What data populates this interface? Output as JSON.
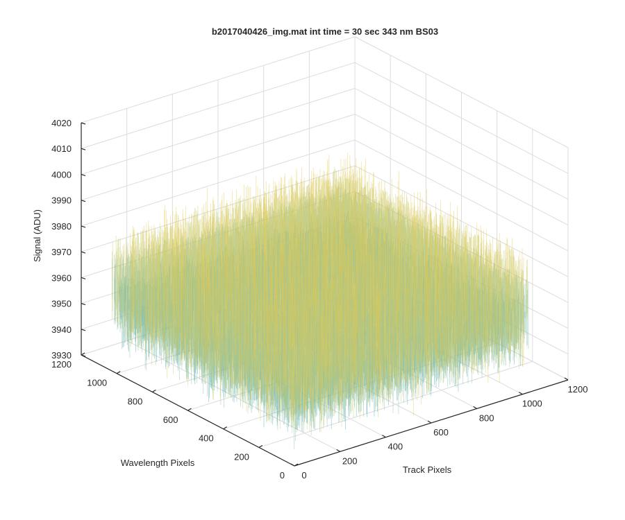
{
  "chart_data": {
    "type": "surface",
    "title": "b2017040426_img.mat int time = 30 sec  343 nm BS03",
    "xlabel": "Track Pixels",
    "ylabel": "Wavelength Pixels",
    "zlabel": "Signal (ADU)",
    "xlim": [
      0,
      1200
    ],
    "ylim": [
      0,
      1200
    ],
    "zlim": [
      3930,
      4020
    ],
    "x_ticks": [
      "0",
      "200",
      "400",
      "600",
      "800",
      "1000",
      "1200"
    ],
    "y_ticks": [
      "0",
      "200",
      "400",
      "600",
      "800",
      "1000",
      "1200"
    ],
    "z_ticks": [
      "3930",
      "3940",
      "3950",
      "3960",
      "3970",
      "3980",
      "3990",
      "4000",
      "4010",
      "4020"
    ],
    "surface_extent": {
      "x": [
        0,
        1024
      ],
      "y": [
        0,
        1024
      ]
    },
    "signal_mean": 3962,
    "signal_spread": [
      3940,
      3990
    ],
    "grid": true,
    "colormap": [
      "#0072bd",
      "#1a8fc9",
      "#3aa6b8",
      "#7fb99a",
      "#c8c86a",
      "#e6c84a"
    ]
  }
}
